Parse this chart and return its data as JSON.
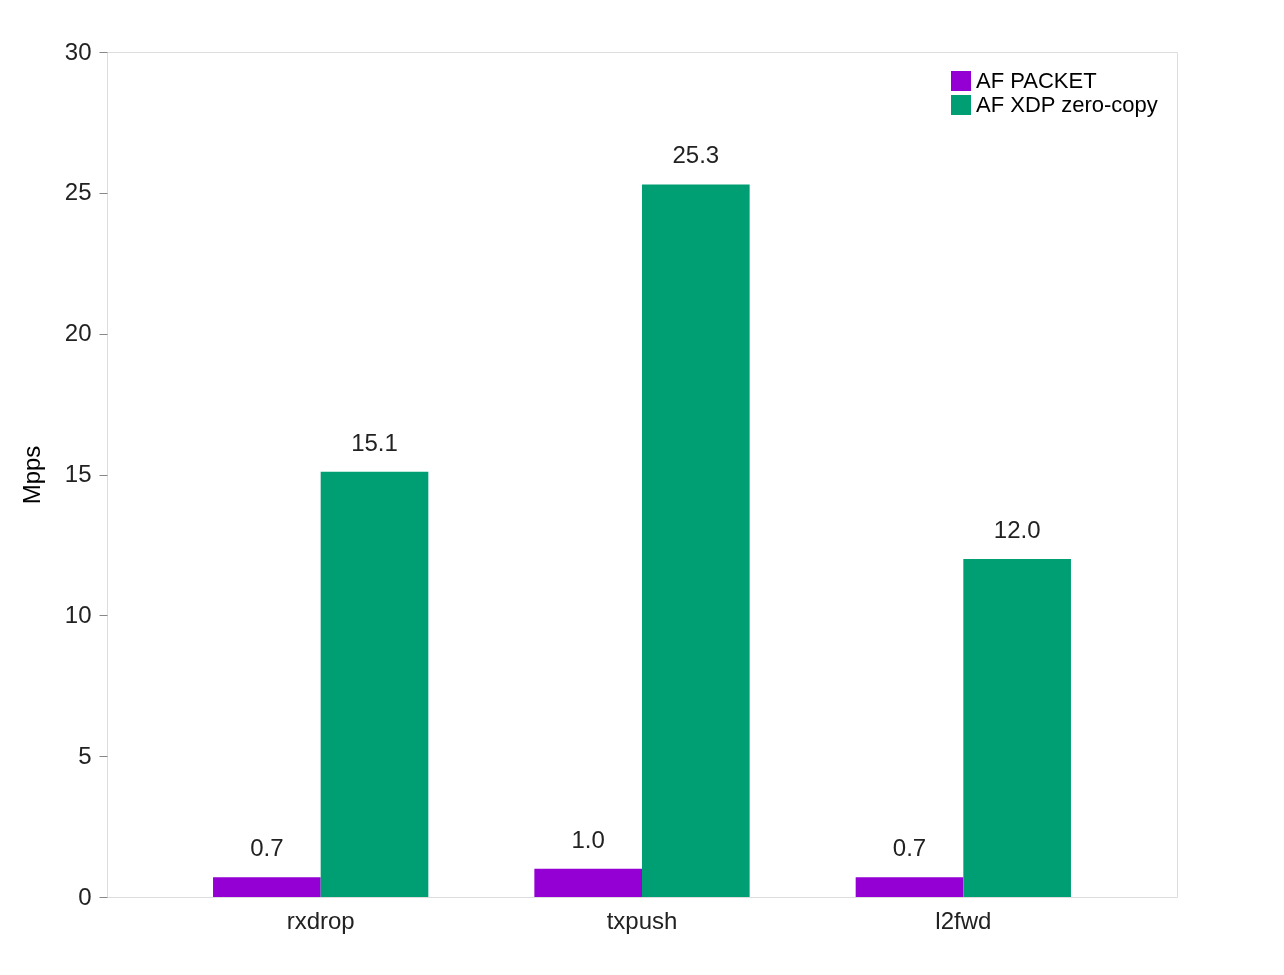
{
  "chart_data": {
    "type": "bar",
    "ylabel": "Mpps",
    "categories": [
      "rxdrop",
      "txpush",
      "l2fwd"
    ],
    "series": [
      {
        "name": "AF PACKET",
        "color": "#9400d3",
        "values": [
          0.7,
          1.0,
          0.7
        ],
        "value_labels": [
          "0.7",
          "1.0",
          "0.7"
        ]
      },
      {
        "name": "AF XDP zero-copy",
        "color": "#009e73",
        "values": [
          15.1,
          25.3,
          12.0
        ],
        "value_labels": [
          "15.1",
          "25.3",
          "12.0"
        ]
      }
    ],
    "ylim": [
      0,
      30
    ],
    "yticks": [
      0,
      5,
      10,
      15,
      20,
      25,
      30
    ],
    "grid": false,
    "legend": "top right"
  }
}
